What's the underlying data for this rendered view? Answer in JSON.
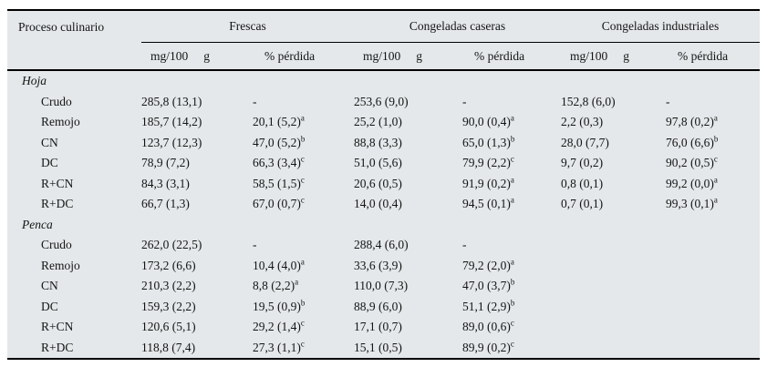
{
  "colors": {
    "table_bg": "#e4e8ea",
    "rule": "#000000",
    "text": "#141414"
  },
  "table": {
    "col1_header": "Proceso culinario",
    "groups": [
      {
        "label": "Frescas"
      },
      {
        "label": "Congeladas caseras"
      },
      {
        "label": "Congeladas industriales"
      }
    ],
    "subheaders": {
      "amount": "mg/100",
      "unit": "g",
      "loss": "% pérdida"
    },
    "sections": [
      {
        "name": "Hoja",
        "rows": [
          {
            "label": "Crudo",
            "cells": [
              "285,8 (13,1)",
              "-",
              "253,6 (9,0)",
              "-",
              "152,8 (6,0)",
              "-"
            ]
          },
          {
            "label": "Remojo",
            "cells": [
              "185,7 (14,2)",
              "20,1 (5,2)^a",
              "25,2 (1,0)",
              "90,0 (0,4)^a",
              "2,2 (0,3)",
              "97,8 (0,2)^a"
            ]
          },
          {
            "label": "CN",
            "cells": [
              "123,7 (12,3)",
              "47,0 (5,2)^b",
              "88,8 (3,3)",
              "65,0 (1,3)^b",
              "28,0 (7,7)",
              "76,0 (6,6)^b"
            ]
          },
          {
            "label": "DC",
            "cells": [
              "78,9 (7,2)",
              "66,3 (3,4)^c",
              "51,0 (5,6)",
              "79,9 (2,2)^c",
              "9,7 (0,2)",
              "90,2 (0,5)^c"
            ]
          },
          {
            "label": "R+CN",
            "cells": [
              "84,3 (3,1)",
              "58,5 (1,5)^c",
              "20,6 (0,5)",
              "91,9 (0,2)^a",
              "0,8 (0,1)",
              "99,2 (0,0)^a"
            ]
          },
          {
            "label": "R+DC",
            "cells": [
              "66,7 (1,3)",
              "67,0 (0,7)^c",
              "14,0 (0,4)",
              "94,5 (0,1)^a",
              "0,7 (0,1)",
              "99,3 (0,1)^a"
            ]
          }
        ]
      },
      {
        "name": "Penca",
        "rows": [
          {
            "label": "Crudo",
            "cells": [
              "262,0 (22,5)",
              "-",
              "288,4 (6,0)",
              "-",
              "",
              ""
            ]
          },
          {
            "label": "Remojo",
            "cells": [
              "173,2 (6,6)",
              "10,4 (4,0)^a",
              "33,6 (3,9)",
              "79,2 (2,0)^a",
              "",
              ""
            ]
          },
          {
            "label": "CN",
            "cells": [
              "210,3 (2,2)",
              "8,8 (2,2)^a",
              "110,0 (7,3)",
              "47,0 (3,7)^b",
              "",
              ""
            ]
          },
          {
            "label": "DC",
            "cells": [
              "159,3 (2,2)",
              "19,5 (0,9)^b",
              "88,9 (6,0)",
              "51,1 (2,9)^b",
              "",
              ""
            ]
          },
          {
            "label": "R+CN",
            "cells": [
              "120,6 (5,1)",
              "29,2 (1,4)^c",
              "17,1 (0,7)",
              "89,0 (0,6)^c",
              "",
              ""
            ]
          },
          {
            "label": "R+DC",
            "cells": [
              "118,8 (7,4)",
              "27,3 (1,1)^c",
              "15,1 (0,5)",
              "89,9 (0,2)^c",
              "",
              ""
            ]
          }
        ]
      }
    ]
  }
}
